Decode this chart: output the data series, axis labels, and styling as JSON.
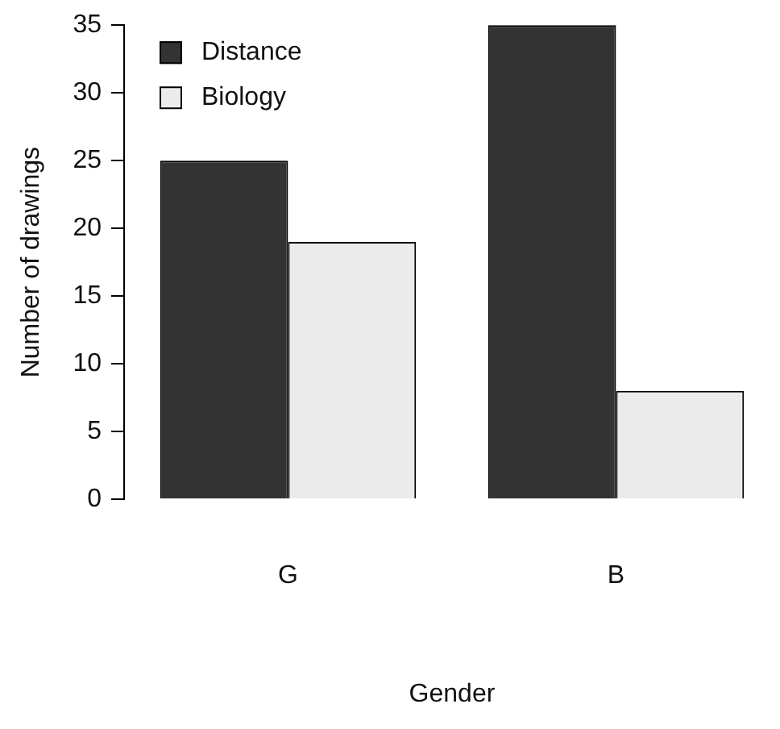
{
  "chart_data": {
    "type": "bar",
    "xlabel": "Gender",
    "ylabel": "Number of drawings",
    "categories": [
      "G",
      "B"
    ],
    "series": [
      {
        "name": "Distance",
        "color": "#333333",
        "values": [
          25,
          35
        ]
      },
      {
        "name": "Biology",
        "color": "#ebebeb",
        "values": [
          19,
          8
        ]
      }
    ],
    "ylim": [
      0,
      35
    ],
    "yticks": [
      0,
      5,
      10,
      15,
      20,
      25,
      30,
      35
    ],
    "grid": false,
    "legend": "top left"
  }
}
